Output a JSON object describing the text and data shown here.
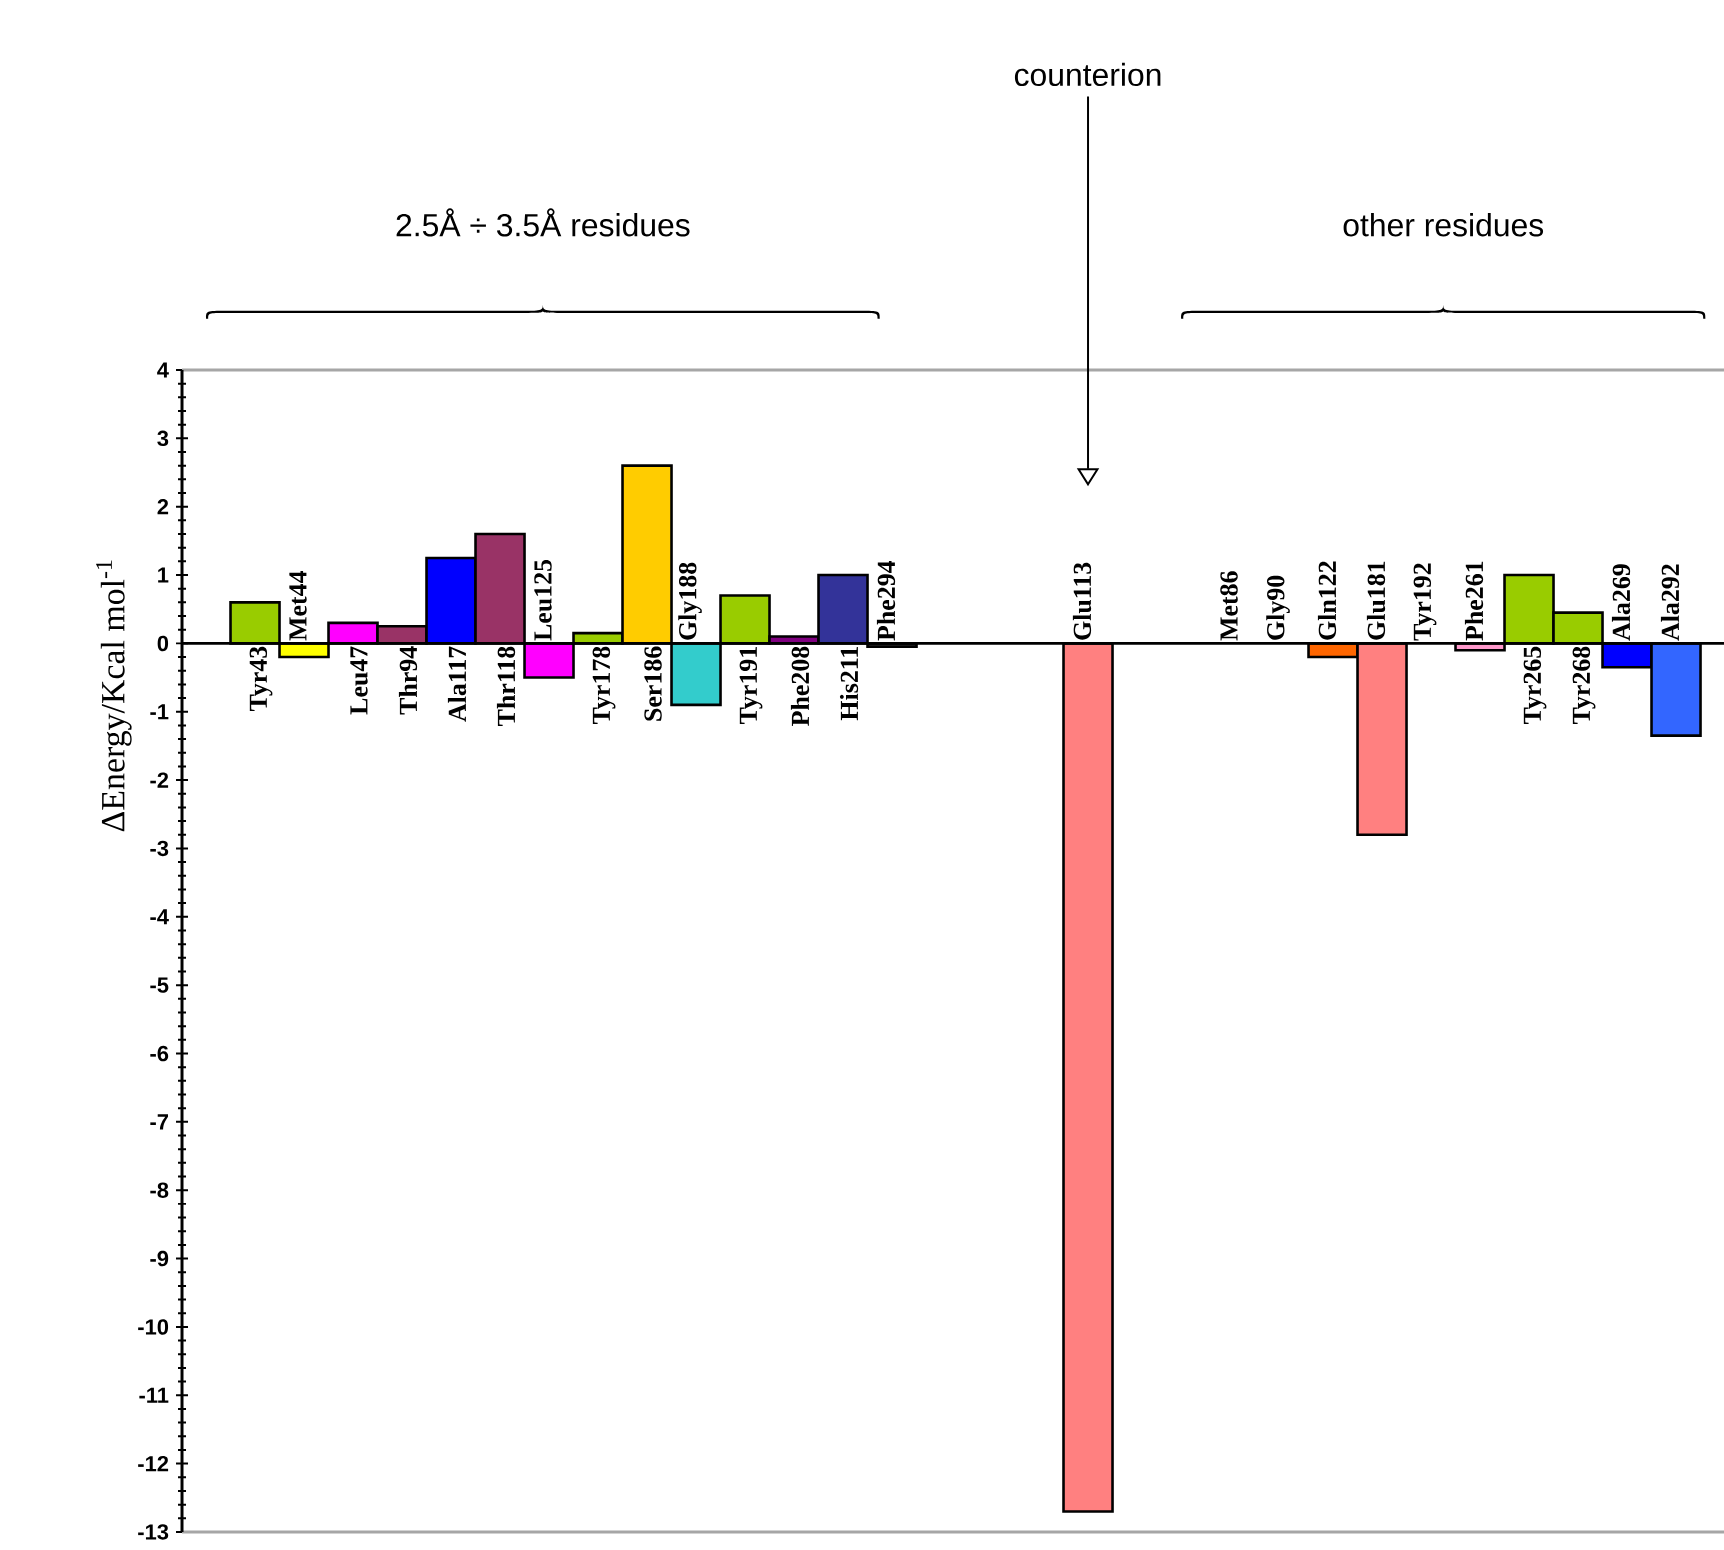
{
  "chart_data": {
    "type": "bar",
    "ylabel": "ΔEnergy/Kcal mol$^{-1}$",
    "categories": [
      "Tyr43",
      "Met44",
      "Leu47",
      "Thr94",
      "Ala117",
      "Thr118",
      "Leu125",
      "Tyr178",
      "Ser186",
      "Gly188",
      "Tyr191",
      "Phe208",
      "His211",
      "Phe294",
      null,
      null,
      null,
      "Glu113",
      null,
      null,
      "Met86",
      "Gly90",
      "Gln122",
      "Glu181",
      "Tyr192",
      "Phe261",
      "Tyr265",
      "Tyr268",
      "Ala269",
      "Ala292"
    ],
    "values": [
      0.6,
      -0.2,
      0.3,
      0.25,
      1.25,
      1.6,
      -0.5,
      0.15,
      2.6,
      -0.9,
      0.7,
      0.1,
      1.0,
      -0.05,
      null,
      null,
      null,
      -12.7,
      null,
      null,
      null,
      null,
      -0.2,
      -2.8,
      null,
      -0.1,
      1.0,
      0.45,
      -0.35,
      -1.35
    ],
    "colors": [
      "#99cc00",
      "#ffff00",
      "#ff00ff",
      "#993366",
      "#0000ff",
      "#993366",
      "#ff00ff",
      "#99cc00",
      "#ffcc00",
      "#33cccc",
      "#99cc00",
      "#800080",
      "#333399",
      "#333333",
      "#ffffff",
      "#ffffff",
      "#ffffff",
      "#ff8080",
      "#ffffff",
      "#ffffff",
      "#000000",
      "#003366",
      "#ff6600",
      "#ff8080",
      "#000000",
      "#ff99cc",
      "#99cc00",
      "#99cc00",
      "#0000ff",
      "#3366ff"
    ],
    "ylim": [
      -13,
      4
    ],
    "yticks": [
      -13,
      -12,
      -11,
      -10,
      -9,
      -8,
      -7,
      -6,
      -5,
      -4,
      -3,
      -2,
      -1,
      0,
      1,
      2,
      3,
      4
    ],
    "annotations": [
      "counterion",
      "2.5Å ÷ 3.5Å residues",
      "other residues"
    ]
  }
}
